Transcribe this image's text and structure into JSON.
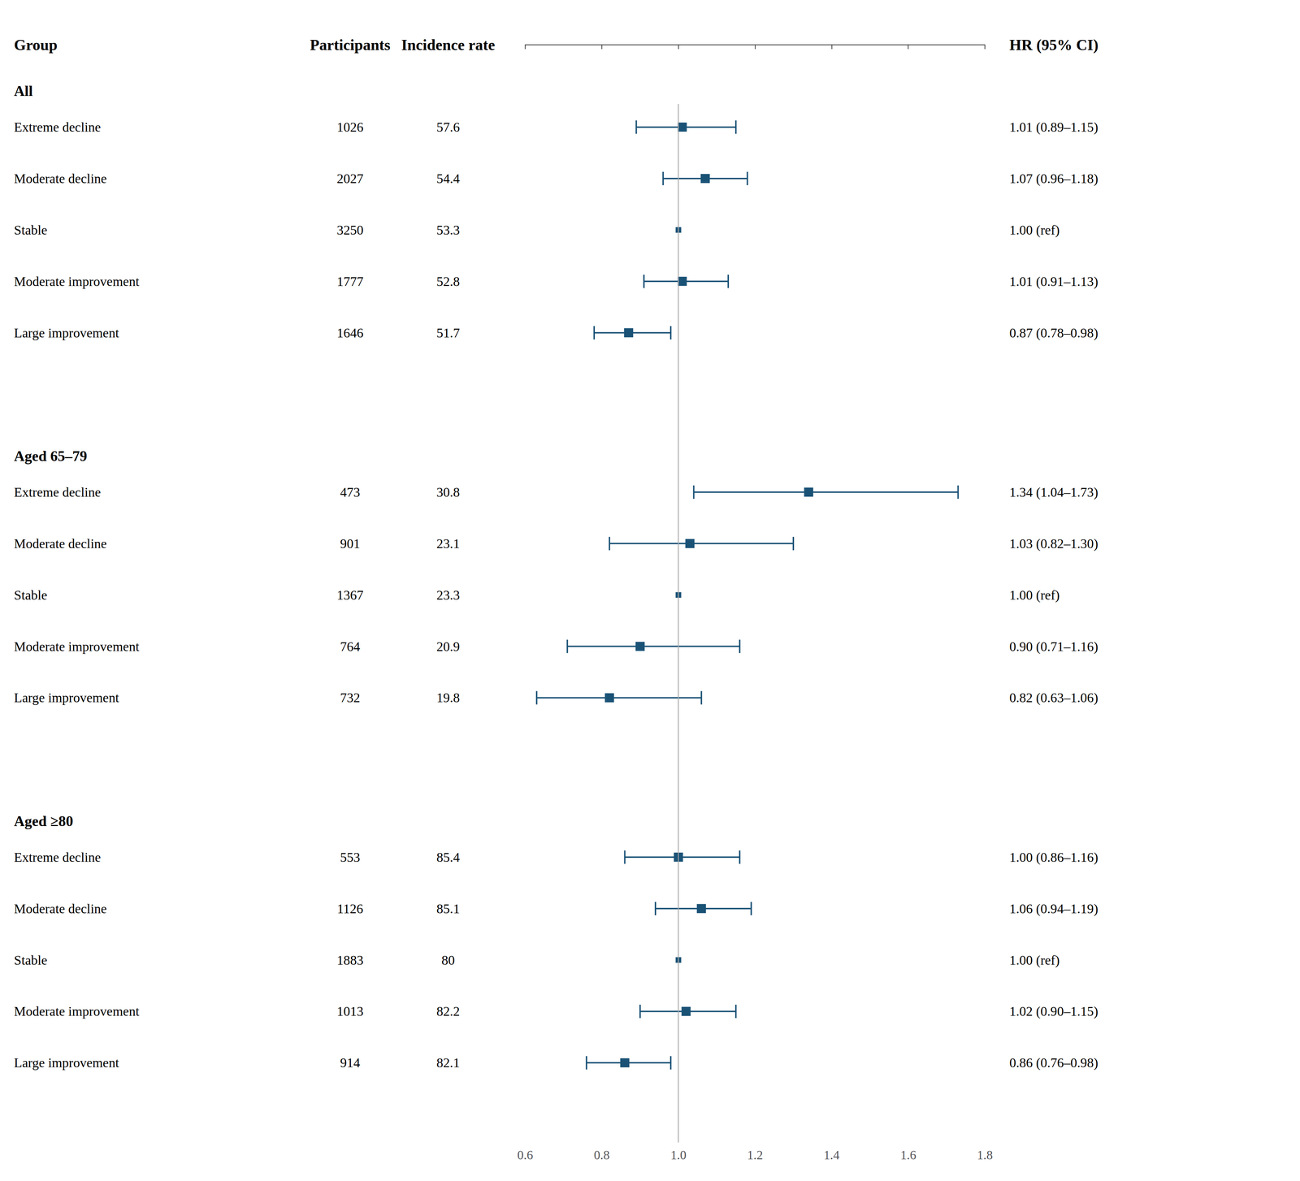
{
  "chart_data": {
    "type": "forest",
    "columns": [
      "Group",
      "Participants",
      "Incidence rate",
      "HR (95% CI)"
    ],
    "sections": [
      {
        "title": "All",
        "rows": [
          {
            "label": "Extreme decline",
            "n": "1026",
            "rate": "57.6",
            "hr": 1.01,
            "ci_lo": 0.89,
            "ci_hi": 1.15,
            "hr_text": "1.01 (0.89–1.15)",
            "is_ref": false
          },
          {
            "label": "Moderate decline",
            "n": "2027",
            "rate": "54.4",
            "hr": 1.07,
            "ci_lo": 0.96,
            "ci_hi": 1.18,
            "hr_text": "1.07 (0.96–1.18)",
            "is_ref": false
          },
          {
            "label": "Stable",
            "n": "3250",
            "rate": "53.3",
            "hr": 1.0,
            "hr_text": "1.00 (ref)",
            "is_ref": true
          },
          {
            "label": "Moderate improvement",
            "n": "1777",
            "rate": "52.8",
            "hr": 1.01,
            "ci_lo": 0.91,
            "ci_hi": 1.13,
            "hr_text": "1.01 (0.91–1.13)",
            "is_ref": false
          },
          {
            "label": "Large improvement",
            "n": "1646",
            "rate": "51.7",
            "hr": 0.87,
            "ci_lo": 0.78,
            "ci_hi": 0.98,
            "hr_text": "0.87 (0.78–0.98)",
            "is_ref": false
          }
        ]
      },
      {
        "title": "Aged 65–79",
        "rows": [
          {
            "label": "Extreme decline",
            "n": "473",
            "rate": "30.8",
            "hr": 1.34,
            "ci_lo": 1.04,
            "ci_hi": 1.73,
            "hr_text": "1.34 (1.04–1.73)",
            "is_ref": false
          },
          {
            "label": "Moderate decline",
            "n": "901",
            "rate": "23.1",
            "hr": 1.03,
            "ci_lo": 0.82,
            "ci_hi": 1.3,
            "hr_text": "1.03 (0.82–1.30)",
            "is_ref": false
          },
          {
            "label": "Stable",
            "n": "1367",
            "rate": "23.3",
            "hr": 1.0,
            "hr_text": "1.00 (ref)",
            "is_ref": true
          },
          {
            "label": "Moderate improvement",
            "n": "764",
            "rate": "20.9",
            "hr": 0.9,
            "ci_lo": 0.71,
            "ci_hi": 1.16,
            "hr_text": "0.90 (0.71–1.16)",
            "is_ref": false
          },
          {
            "label": "Large improvement",
            "n": "732",
            "rate": "19.8",
            "hr": 0.82,
            "ci_lo": 0.63,
            "ci_hi": 1.06,
            "hr_text": "0.82 (0.63–1.06)",
            "is_ref": false
          }
        ]
      },
      {
        "title": "Aged ≥80",
        "rows": [
          {
            "label": "Extreme decline",
            "n": "553",
            "rate": "85.4",
            "hr": 1.0,
            "ci_lo": 0.86,
            "ci_hi": 1.16,
            "hr_text": "1.00 (0.86–1.16)",
            "is_ref": false
          },
          {
            "label": "Moderate decline",
            "n": "1126",
            "rate": "85.1",
            "hr": 1.06,
            "ci_lo": 0.94,
            "ci_hi": 1.19,
            "hr_text": "1.06 (0.94–1.19)",
            "is_ref": false
          },
          {
            "label": "Stable",
            "n": "1883",
            "rate": "80",
            "hr": 1.0,
            "hr_text": "1.00 (ref)",
            "is_ref": true
          },
          {
            "label": "Moderate improvement",
            "n": "1013",
            "rate": "82.2",
            "hr": 1.02,
            "ci_lo": 0.9,
            "ci_hi": 1.15,
            "hr_text": "1.02 (0.90–1.15)",
            "is_ref": false
          },
          {
            "label": "Large improvement",
            "n": "914",
            "rate": "82.1",
            "hr": 0.86,
            "ci_lo": 0.76,
            "ci_hi": 0.98,
            "hr_text": "0.86 (0.76–0.98)",
            "is_ref": false
          }
        ]
      }
    ],
    "xlim": [
      0.6,
      1.8
    ],
    "xticks": [
      0.6,
      0.8,
      {
        "value": 1.0,
        "label": "1.0"
      },
      1.2,
      1.4,
      1.6,
      1.8
    ],
    "ref_line": 1.0,
    "color": "#1a5276",
    "marker": "square",
    "grid": false
  }
}
